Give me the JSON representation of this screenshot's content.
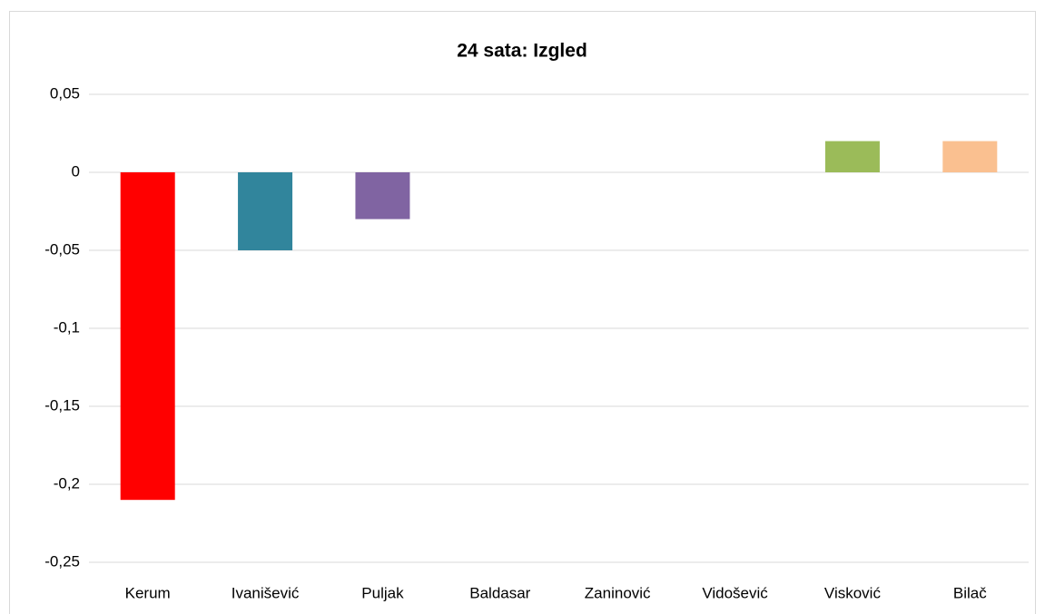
{
  "chart_data": {
    "type": "bar",
    "title": "24 sata: Izgled",
    "categories": [
      "Kerum",
      "Ivanišević",
      "Puljak",
      "Baldasar",
      "Zaninović",
      "Vidošević",
      "Visković",
      "Bilač"
    ],
    "values": [
      -0.21,
      -0.05,
      -0.03,
      0,
      0,
      0,
      0.02,
      0.02
    ],
    "colors": [
      "#ff0000",
      "#31859c",
      "#8064a2",
      "#4f81bd",
      "#c0504d",
      "#f79646",
      "#9bbb59",
      "#fac090"
    ],
    "ylim": [
      -0.25,
      0.05
    ],
    "yticks": [
      {
        "value": 0.05,
        "label": "0,05"
      },
      0,
      {
        "value": -0.05,
        "label": "-0,05"
      },
      {
        "value": -0.1,
        "label": "-0,1"
      },
      {
        "value": -0.15,
        "label": "-0,15"
      },
      {
        "value": -0.2,
        "label": "-0,2"
      },
      {
        "value": -0.25,
        "label": "-0,25"
      }
    ],
    "grid": true
  }
}
